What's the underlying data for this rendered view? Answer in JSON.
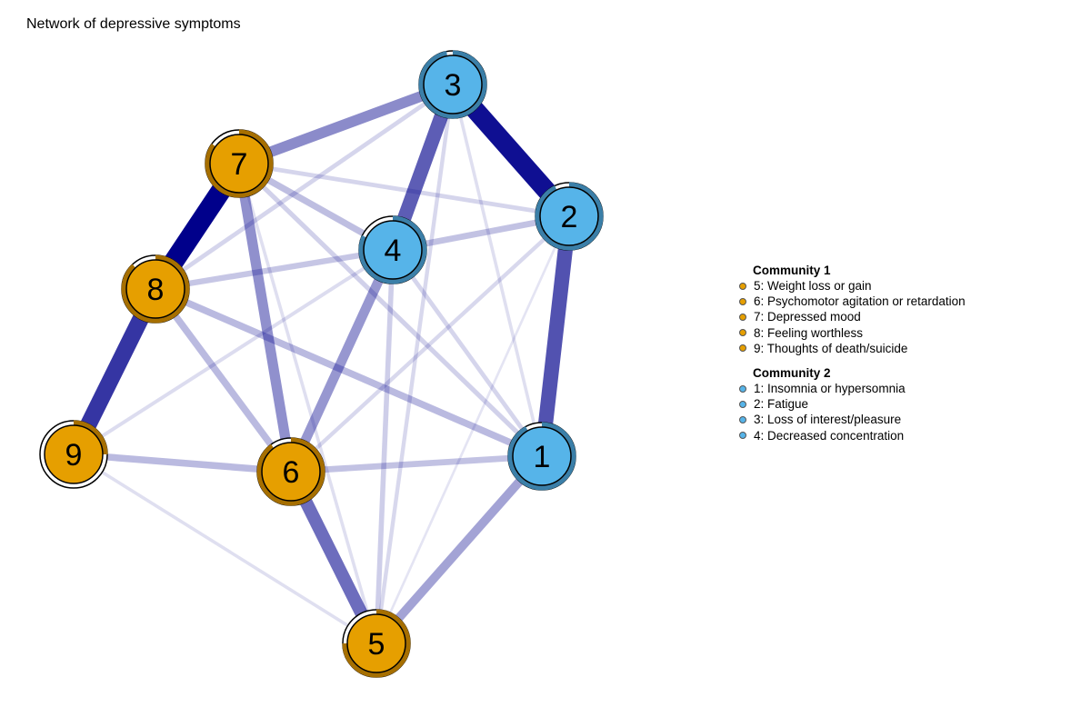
{
  "title": "Network of depressive symptoms",
  "colors": {
    "community1": "#E69F00",
    "community2": "#56B4E9",
    "community1_ring": "#A66F00",
    "community2_ring": "#3B7FA8",
    "edge": "#00008B"
  },
  "nodes": [
    {
      "id": "1",
      "label": "1",
      "community": "community2",
      "pie": 0.92
    },
    {
      "id": "2",
      "label": "2",
      "community": "community2",
      "pie": 0.93
    },
    {
      "id": "3",
      "label": "3",
      "community": "community2",
      "pie": 0.97
    },
    {
      "id": "4",
      "label": "4",
      "community": "community2",
      "pie": 0.82
    },
    {
      "id": "5",
      "label": "5",
      "community": "community1",
      "pie": 0.75
    },
    {
      "id": "6",
      "label": "6",
      "community": "community1",
      "pie": 0.9
    },
    {
      "id": "7",
      "label": "7",
      "community": "community1",
      "pie": 0.85
    },
    {
      "id": "8",
      "label": "8",
      "community": "community1",
      "pie": 0.88
    },
    {
      "id": "9",
      "label": "9",
      "community": "community1",
      "pie": 0.25
    }
  ],
  "edges": [
    {
      "from": "3",
      "to": "2",
      "weight": 0.95
    },
    {
      "from": "7",
      "to": "8",
      "weight": 1.0
    },
    {
      "from": "8",
      "to": "9",
      "weight": 0.82
    },
    {
      "from": "2",
      "to": "1",
      "weight": 0.72
    },
    {
      "from": "3",
      "to": "4",
      "weight": 0.68
    },
    {
      "from": "6",
      "to": "5",
      "weight": 0.62
    },
    {
      "from": "7",
      "to": "3",
      "weight": 0.5
    },
    {
      "from": "7",
      "to": "6",
      "weight": 0.48
    },
    {
      "from": "4",
      "to": "6",
      "weight": 0.45
    },
    {
      "from": "1",
      "to": "5",
      "weight": 0.4
    },
    {
      "from": "8",
      "to": "1",
      "weight": 0.3
    },
    {
      "from": "8",
      "to": "6",
      "weight": 0.3
    },
    {
      "from": "9",
      "to": "6",
      "weight": 0.3
    },
    {
      "from": "7",
      "to": "4",
      "weight": 0.28
    },
    {
      "from": "4",
      "to": "2",
      "weight": 0.26
    },
    {
      "from": "6",
      "to": "1",
      "weight": 0.26
    },
    {
      "from": "8",
      "to": "4",
      "weight": 0.24
    },
    {
      "from": "4",
      "to": "5",
      "weight": 0.2
    },
    {
      "from": "7",
      "to": "1",
      "weight": 0.18
    },
    {
      "from": "8",
      "to": "3",
      "weight": 0.16
    },
    {
      "from": "7",
      "to": "2",
      "weight": 0.16
    },
    {
      "from": "4",
      "to": "1",
      "weight": 0.16
    },
    {
      "from": "3",
      "to": "5",
      "weight": 0.14
    },
    {
      "from": "2",
      "to": "6",
      "weight": 0.14
    },
    {
      "from": "9",
      "to": "4",
      "weight": 0.12
    },
    {
      "from": "9",
      "to": "5",
      "weight": 0.1
    },
    {
      "from": "7",
      "to": "5",
      "weight": 0.1
    },
    {
      "from": "3",
      "to": "1",
      "weight": 0.1
    },
    {
      "from": "2",
      "to": "5",
      "weight": 0.06
    }
  ],
  "legend": {
    "groups": [
      {
        "title": "Community 1",
        "community": "community1",
        "items": [
          "5: Weight loss or gain",
          "6: Psychomotor agitation or retardation",
          "7: Depressed mood",
          "8: Feeling worthless",
          "9: Thoughts of death/suicide"
        ]
      },
      {
        "title": "Community 2",
        "community": "community2",
        "items": [
          "1: Insomnia or hypersomnia",
          "2: Fatigue",
          "3: Loss of interest/pleasure",
          "4: Decreased concentration"
        ]
      }
    ]
  }
}
